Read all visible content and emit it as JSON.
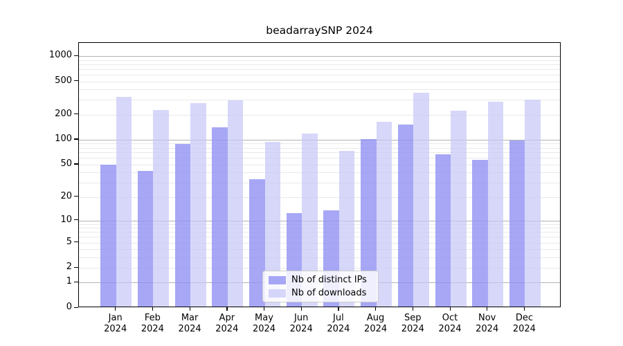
{
  "chart_data": {
    "type": "bar",
    "title": "beadarraySNP 2024",
    "categories": [
      "Jan 2024",
      "Feb 2024",
      "Mar 2024",
      "Apr 2024",
      "May 2024",
      "Jun 2024",
      "Jul 2024",
      "Aug 2024",
      "Sep 2024",
      "Oct 2024",
      "Nov 2024",
      "Dec 2024"
    ],
    "months": [
      "Jan",
      "Feb",
      "Mar",
      "Apr",
      "May",
      "Jun",
      "Jul",
      "Aug",
      "Sep",
      "Oct",
      "Nov",
      "Dec"
    ],
    "year": "2024",
    "series": [
      {
        "name": "Nb of distinct IPs",
        "color": "#a7a7f6",
        "fill": "rgba(145,145,244,0.8)",
        "values": [
          48,
          40,
          85,
          136,
          32,
          12,
          13,
          97,
          147,
          64,
          55,
          95
        ]
      },
      {
        "name": "Nb of downloads",
        "color": "#d7d7f9",
        "fill": "rgba(198,198,246,0.7)",
        "values": [
          315,
          220,
          262,
          285,
          90,
          114,
          70,
          158,
          350,
          213,
          277,
          289
        ]
      }
    ],
    "yscale": "log10(1+x)",
    "ylim": [
      0,
      1440
    ],
    "y_tick_values": [
      0,
      1,
      2,
      5,
      10,
      20,
      50,
      100,
      200,
      500,
      1000
    ],
    "y_tick_labels": [
      "0",
      "1",
      "2",
      "5",
      "10",
      "20",
      "50",
      "100",
      "200",
      "500",
      "1000"
    ],
    "minor_grid_values": [
      2,
      3,
      4,
      5,
      6,
      7,
      8,
      9,
      20,
      30,
      40,
      50,
      60,
      70,
      80,
      90,
      200,
      300,
      400,
      500,
      600,
      700,
      800,
      900
    ],
    "major_grid_values": [
      1,
      10,
      100,
      1000
    ],
    "grid": true,
    "legend_position": "bottom-center"
  }
}
